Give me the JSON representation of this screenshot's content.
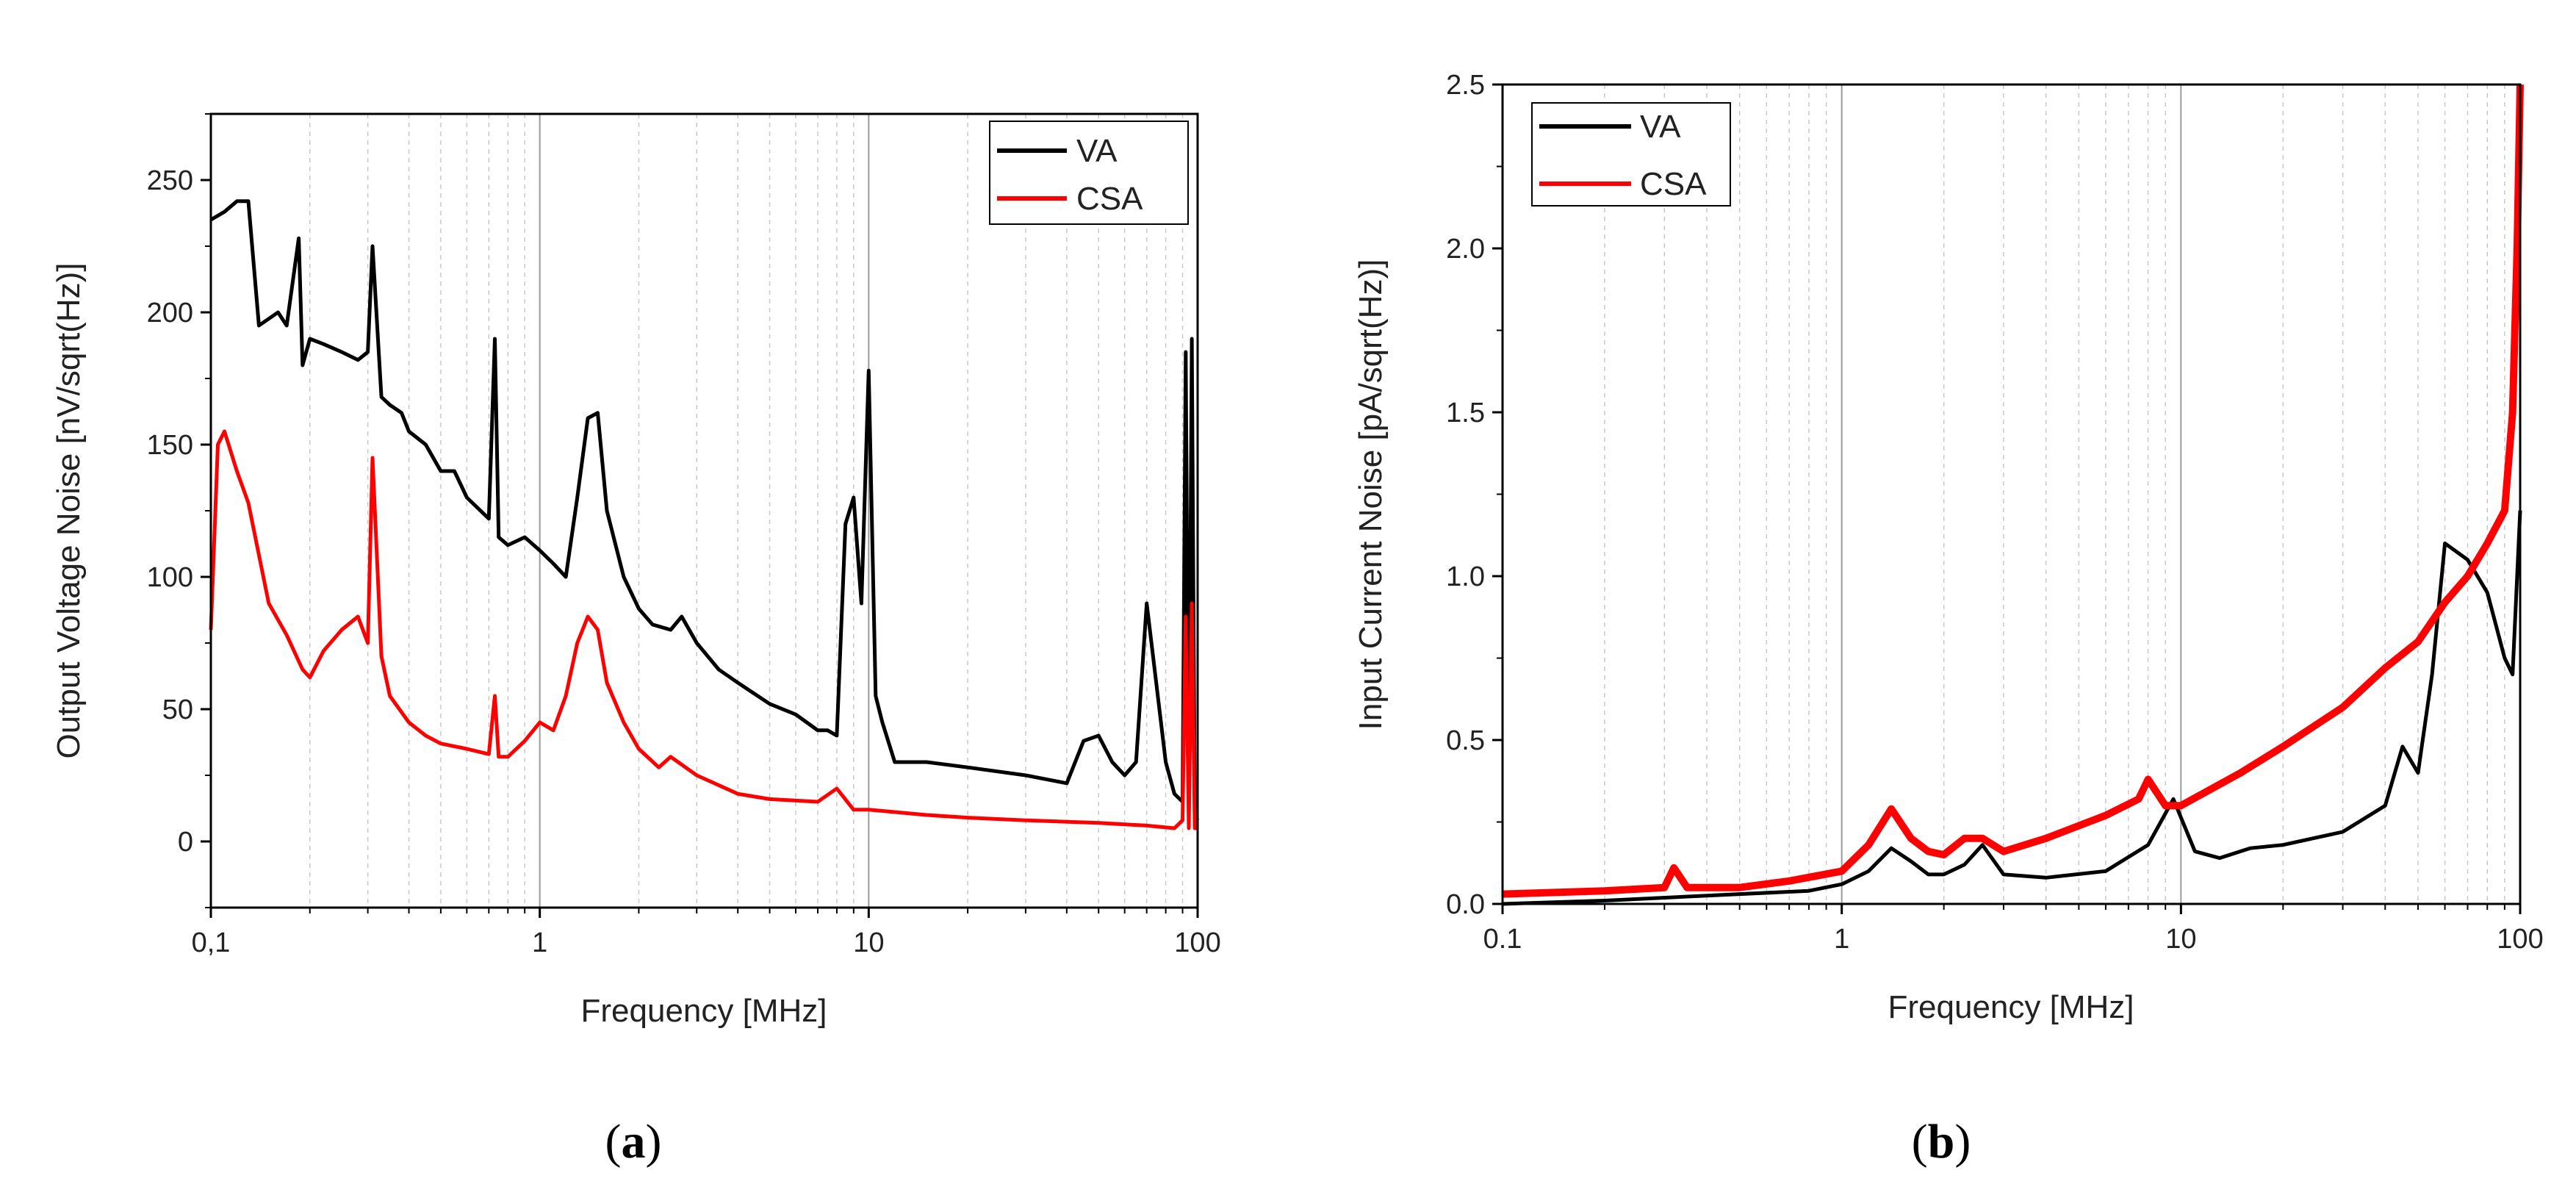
{
  "figure": {
    "panel_a_caption": {
      "open": "(",
      "letter": "a",
      "close": ")"
    },
    "panel_b_caption": {
      "open": "(",
      "letter": "b",
      "close": ")"
    }
  },
  "chart_data": [
    {
      "type": "line",
      "panel": "a",
      "title": "",
      "xlabel": "Frequency [MHz]",
      "ylabel": "Output Voltage Noise [nV/sqrt(Hz)]",
      "xscale": "log",
      "xlim": [
        0.1,
        100
      ],
      "ylim": [
        -25,
        275
      ],
      "xticks": [
        {
          "value": 0.1,
          "label": "0,1"
        },
        {
          "value": 1,
          "label": "1"
        },
        {
          "value": 10,
          "label": "10"
        },
        {
          "value": 100,
          "label": "100"
        }
      ],
      "yticks": [
        {
          "value": 0,
          "label": "0"
        },
        {
          "value": 50,
          "label": "50"
        },
        {
          "value": 100,
          "label": "100"
        },
        {
          "value": 150,
          "label": "150"
        },
        {
          "value": 200,
          "label": "200"
        },
        {
          "value": 250,
          "label": "250"
        }
      ],
      "grid": "vertical log minor lines",
      "legend_position": "top-right",
      "series": [
        {
          "name": "VA",
          "color": "#000000",
          "x": [
            0.1,
            0.11,
            0.12,
            0.13,
            0.14,
            0.16,
            0.17,
            0.185,
            0.19,
            0.2,
            0.22,
            0.25,
            0.28,
            0.3,
            0.31,
            0.33,
            0.35,
            0.38,
            0.4,
            0.45,
            0.5,
            0.55,
            0.6,
            0.7,
            0.73,
            0.75,
            0.8,
            0.9,
            1.0,
            1.1,
            1.2,
            1.3,
            1.4,
            1.5,
            1.6,
            1.8,
            2.0,
            2.2,
            2.5,
            2.7,
            3.0,
            3.5,
            4.0,
            5.0,
            6.0,
            7.0,
            7.5,
            8.0,
            8.5,
            9.0,
            9.5,
            10.0,
            10.5,
            11.0,
            12.0,
            15.0,
            20.0,
            30.0,
            40.0,
            45.0,
            50.0,
            55.0,
            60.0,
            65.0,
            70.0,
            80.0,
            85.0,
            90.0,
            92.0,
            94.0,
            96.0,
            98.0,
            100.0
          ],
          "values": [
            235,
            238,
            242,
            242,
            195,
            200,
            195,
            228,
            180,
            190,
            188,
            185,
            182,
            185,
            225,
            168,
            165,
            162,
            155,
            150,
            140,
            140,
            130,
            122,
            190,
            115,
            112,
            115,
            110,
            105,
            100,
            130,
            160,
            162,
            125,
            100,
            88,
            82,
            80,
            85,
            75,
            65,
            60,
            52,
            48,
            42,
            42,
            40,
            120,
            130,
            90,
            178,
            55,
            45,
            30,
            30,
            28,
            25,
            22,
            38,
            40,
            30,
            25,
            30,
            90,
            30,
            18,
            15,
            185,
            10,
            190,
            10,
            8
          ]
        },
        {
          "name": "CSA",
          "color": "#ff0000",
          "x": [
            0.1,
            0.105,
            0.11,
            0.12,
            0.13,
            0.15,
            0.17,
            0.19,
            0.2,
            0.22,
            0.25,
            0.28,
            0.3,
            0.31,
            0.33,
            0.35,
            0.4,
            0.45,
            0.5,
            0.6,
            0.7,
            0.73,
            0.75,
            0.8,
            0.9,
            1.0,
            1.1,
            1.2,
            1.3,
            1.4,
            1.5,
            1.6,
            1.8,
            2.0,
            2.3,
            2.5,
            3.0,
            4.0,
            5.0,
            7.0,
            8.0,
            9.0,
            10.0,
            15.0,
            20.0,
            30.0,
            50.0,
            70.0,
            85.0,
            90.0,
            92.0,
            94.0,
            96.0,
            98.0,
            100.0
          ],
          "values": [
            80,
            150,
            155,
            140,
            128,
            90,
            78,
            65,
            62,
            72,
            80,
            85,
            75,
            145,
            70,
            55,
            45,
            40,
            37,
            35,
            33,
            55,
            32,
            32,
            38,
            45,
            42,
            55,
            75,
            85,
            80,
            60,
            45,
            35,
            28,
            32,
            25,
            18,
            16,
            15,
            20,
            12,
            12,
            10,
            9,
            8,
            7,
            6,
            5,
            8,
            85,
            5,
            90,
            5,
            5
          ]
        }
      ]
    },
    {
      "type": "line",
      "panel": "b",
      "title": "",
      "xlabel": "Frequency [MHz]",
      "ylabel": "Input Current Noise [pA/sqrt(Hz)]",
      "xscale": "log",
      "xlim": [
        0.1,
        100
      ],
      "ylim": [
        0,
        2.5
      ],
      "xticks": [
        {
          "value": 0.1,
          "label": "0.1"
        },
        {
          "value": 1,
          "label": "1"
        },
        {
          "value": 10,
          "label": "10"
        },
        {
          "value": 100,
          "label": "100"
        }
      ],
      "yticks": [
        {
          "value": 0.0,
          "label": "0.0"
        },
        {
          "value": 0.5,
          "label": "0.5"
        },
        {
          "value": 1.0,
          "label": "1.0"
        },
        {
          "value": 1.5,
          "label": "1.5"
        },
        {
          "value": 2.0,
          "label": "2.0"
        },
        {
          "value": 2.5,
          "label": "2.5"
        }
      ],
      "grid": "vertical log minor lines",
      "legend_position": "top-left",
      "series": [
        {
          "name": "VA",
          "color": "#000000",
          "x": [
            0.1,
            0.2,
            0.5,
            0.8,
            1.0,
            1.2,
            1.4,
            1.6,
            1.8,
            2.0,
            2.3,
            2.6,
            3.0,
            4.0,
            6.0,
            8.0,
            9.5,
            11.0,
            13.0,
            16.0,
            20.0,
            30.0,
            40.0,
            45.0,
            50.0,
            55.0,
            60.0,
            70.0,
            80.0,
            90.0,
            95.0,
            100.0
          ],
          "values": [
            0.0,
            0.01,
            0.03,
            0.04,
            0.06,
            0.1,
            0.17,
            0.13,
            0.09,
            0.09,
            0.12,
            0.18,
            0.09,
            0.08,
            0.1,
            0.18,
            0.32,
            0.16,
            0.14,
            0.17,
            0.18,
            0.22,
            0.3,
            0.48,
            0.4,
            0.7,
            1.1,
            1.05,
            0.95,
            0.75,
            0.7,
            1.2
          ]
        },
        {
          "name": "CSA",
          "color": "#ff0000",
          "x": [
            0.1,
            0.2,
            0.3,
            0.32,
            0.35,
            0.5,
            0.7,
            1.0,
            1.2,
            1.4,
            1.6,
            1.8,
            2.0,
            2.3,
            2.6,
            3.0,
            4.0,
            6.0,
            7.5,
            8.0,
            9.0,
            10.0,
            15.0,
            20.0,
            30.0,
            40.0,
            50.0,
            60.0,
            70.0,
            80.0,
            90.0,
            95.0,
            98.0,
            100.0
          ],
          "values": [
            0.03,
            0.04,
            0.05,
            0.11,
            0.05,
            0.05,
            0.07,
            0.1,
            0.18,
            0.29,
            0.2,
            0.16,
            0.15,
            0.2,
            0.2,
            0.16,
            0.2,
            0.27,
            0.32,
            0.38,
            0.3,
            0.3,
            0.4,
            0.48,
            0.6,
            0.72,
            0.8,
            0.92,
            1.0,
            1.1,
            1.2,
            1.5,
            2.0,
            2.5
          ]
        }
      ]
    }
  ]
}
